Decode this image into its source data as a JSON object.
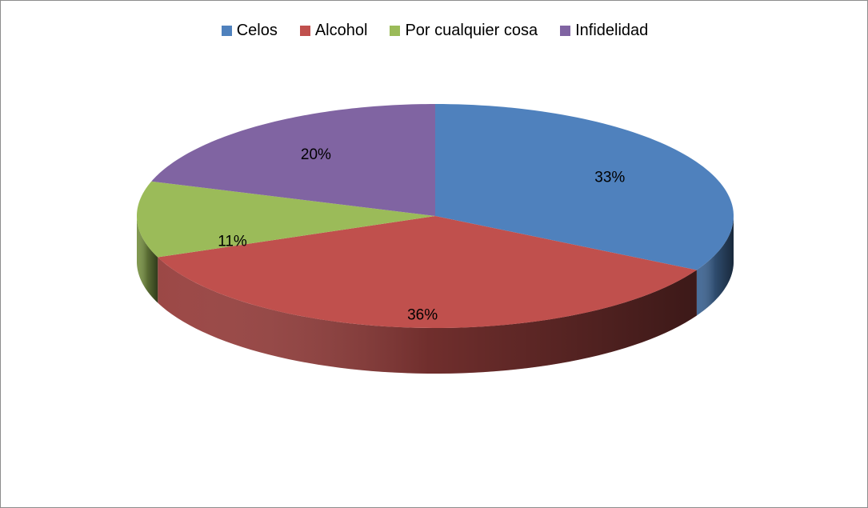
{
  "chart_data": {
    "type": "pie",
    "title": "",
    "categories": [
      "Celos",
      "Alcohol",
      "Por cualquier cosa",
      "Infidelidad"
    ],
    "values": [
      33,
      36,
      11,
      20
    ],
    "labels": [
      "33%",
      "36%",
      "11%",
      "20%"
    ],
    "colors": [
      "#4f81bd",
      "#c0504d",
      "#9bbb59",
      "#8064a2"
    ],
    "legend_position": "top",
    "style": "3d"
  }
}
